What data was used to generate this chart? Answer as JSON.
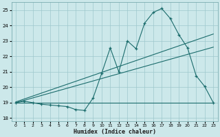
{
  "xlabel": "Humidex (Indice chaleur)",
  "ylabel": "",
  "bg_color": "#cce8ea",
  "grid_color": "#9dc8cc",
  "line_color": "#1a6b6b",
  "xlim": [
    -0.5,
    23.5
  ],
  "ylim": [
    17.8,
    25.5
  ],
  "yticks": [
    18,
    19,
    20,
    21,
    22,
    23,
    24,
    25
  ],
  "xticks": [
    0,
    1,
    2,
    3,
    4,
    5,
    6,
    7,
    8,
    9,
    10,
    11,
    12,
    13,
    14,
    15,
    16,
    17,
    18,
    19,
    20,
    21,
    22,
    23
  ],
  "line1_x": [
    0,
    1,
    2,
    3,
    4,
    5,
    6,
    7,
    8,
    9,
    10,
    11,
    12,
    13,
    14,
    15,
    16,
    17,
    18,
    19,
    20,
    21,
    22,
    23
  ],
  "line1_y": [
    19.0,
    19.1,
    19.0,
    18.9,
    18.85,
    18.8,
    18.75,
    18.55,
    18.5,
    19.3,
    20.9,
    22.55,
    21.0,
    23.0,
    22.5,
    24.15,
    24.85,
    25.1,
    24.45,
    23.4,
    22.55,
    20.75,
    20.05,
    19.0
  ],
  "line2_x": [
    0,
    23
  ],
  "line2_y": [
    19.0,
    19.0
  ],
  "trend1_x": [
    0,
    23
  ],
  "trend1_y": [
    19.0,
    22.6
  ],
  "trend2_x": [
    0,
    23
  ],
  "trend2_y": [
    19.05,
    23.45
  ]
}
